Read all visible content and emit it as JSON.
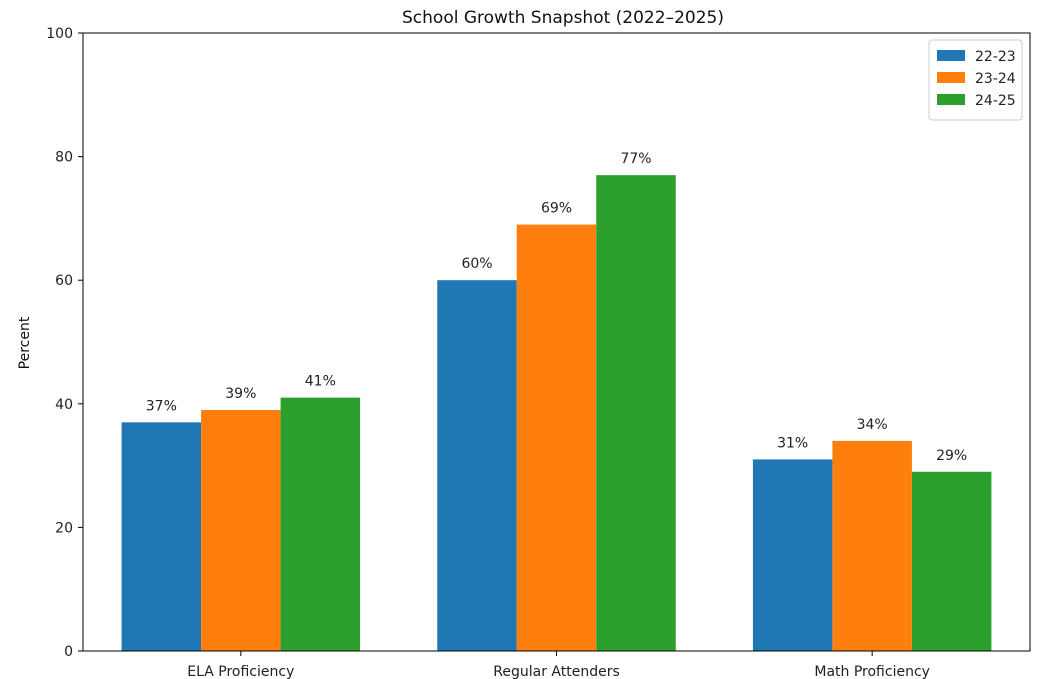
{
  "chart_data": {
    "type": "bar",
    "title": "School Growth Snapshot (2022–2025)",
    "ylabel": "Percent",
    "xlabel": "",
    "ylim": [
      0,
      100
    ],
    "yticks": [
      0,
      20,
      40,
      60,
      80,
      100
    ],
    "categories": [
      "ELA Proficiency",
      "Regular Attenders",
      "Math Proficiency"
    ],
    "series": [
      {
        "name": "22-23",
        "color": "#1f77b4",
        "values": [
          37,
          60,
          31
        ],
        "labels": [
          "37%",
          "60%",
          "31%"
        ]
      },
      {
        "name": "23-24",
        "color": "#ff7f0e",
        "values": [
          39,
          69,
          34
        ],
        "labels": [
          "39%",
          "69%",
          "34%"
        ]
      },
      {
        "name": "24-25",
        "color": "#2ca02c",
        "values": [
          41,
          77,
          29
        ],
        "labels": [
          "41%",
          "77%",
          "29%"
        ]
      }
    ],
    "grid": false,
    "legend_position": "top-right"
  }
}
